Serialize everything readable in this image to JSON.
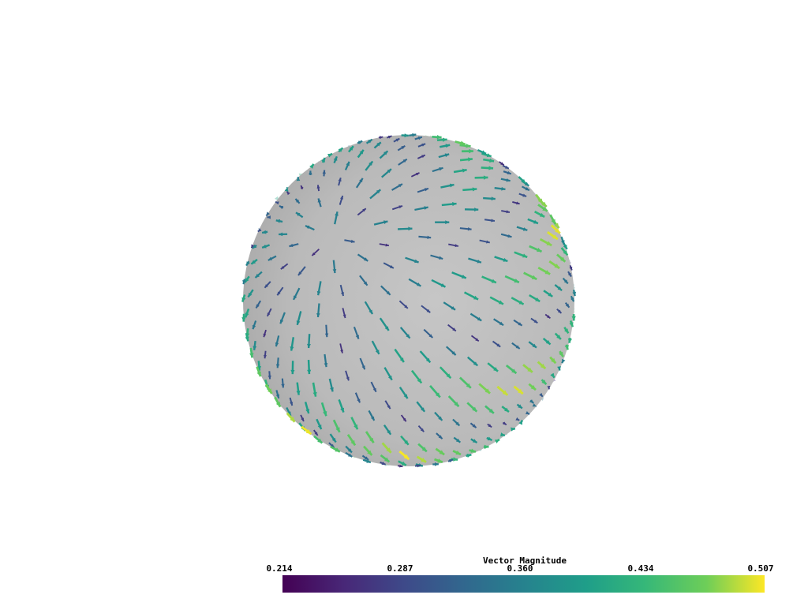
{
  "scalar_bar": {
    "title": "Vector Magnitude",
    "ticks": [
      "0.214",
      "0.287",
      "0.360",
      "0.434",
      "0.507"
    ],
    "range": [
      0.214,
      0.507
    ],
    "colormap": "viridis",
    "colors": [
      "#440154",
      "#3b528b",
      "#21918c",
      "#5ec962",
      "#fde725"
    ]
  },
  "scene": {
    "object": "sphere",
    "glyph": "arrow",
    "sphere_color": "#bdbdbd",
    "background": "#ffffff"
  }
}
